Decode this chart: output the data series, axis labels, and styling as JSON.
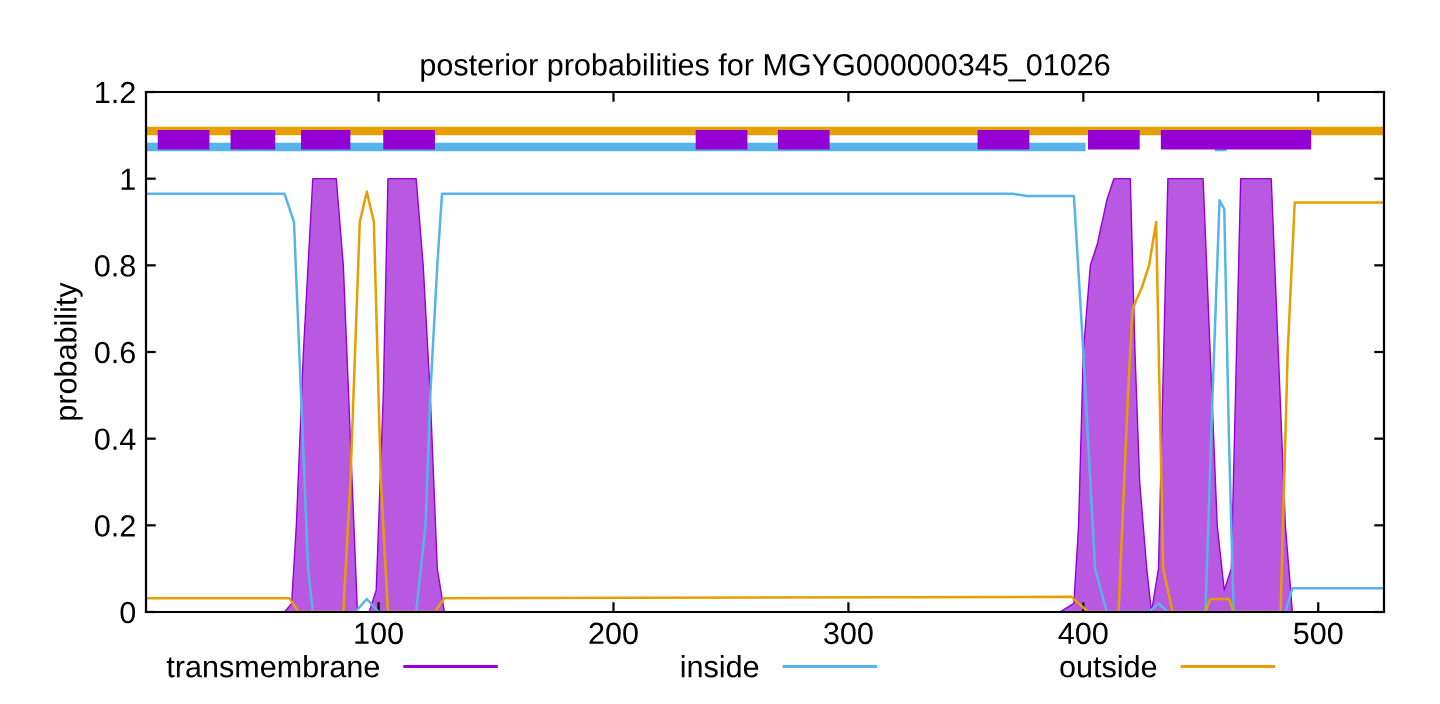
{
  "chart_data": {
    "type": "line",
    "title": "posterior probabilities for MGYG000000345_01026",
    "ylabel": "probability",
    "xlim": [
      1,
      528
    ],
    "ylim": [
      0,
      1.2
    ],
    "xticks": [
      100,
      200,
      300,
      400,
      500
    ],
    "yticks": [
      0,
      0.2,
      0.4,
      0.6,
      0.8,
      1,
      1.2
    ],
    "grid": false,
    "legend": "bottom",
    "series": [
      {
        "name": "transmembrane",
        "type": "area",
        "color": "#9400d3",
        "x": [
          1,
          60,
          63,
          65,
          68,
          72,
          82,
          85,
          88,
          91,
          96,
          99,
          102,
          104,
          116,
          119,
          122,
          125,
          128,
          390,
          396,
          398,
          400,
          403,
          406,
          410,
          413,
          420,
          422,
          424,
          427,
          429,
          432,
          436,
          451,
          454,
          457,
          460,
          463,
          467,
          480,
          483,
          486,
          489,
          528
        ],
        "values": [
          0,
          0,
          0.02,
          0.2,
          0.6,
          1,
          1,
          0.8,
          0.4,
          0,
          0,
          0.05,
          0.5,
          1,
          1,
          0.8,
          0.5,
          0.1,
          0,
          0,
          0.02,
          0.2,
          0.6,
          0.8,
          0.85,
          0.95,
          1,
          1,
          0.6,
          0.3,
          0.1,
          0,
          0.1,
          1,
          1,
          0.6,
          0.2,
          0.05,
          0.1,
          1,
          1,
          0.6,
          0.2,
          0,
          0
        ]
      },
      {
        "name": "inside",
        "color": "#56b4e9",
        "x": [
          1,
          60,
          64,
          67,
          70,
          72,
          90,
          95,
          100,
          104,
          116,
          120,
          122,
          125,
          127,
          370,
          376,
          396,
          400,
          405,
          410,
          428,
          432,
          436,
          452,
          455,
          458,
          460,
          462,
          464,
          486,
          489,
          528
        ],
        "values": [
          0.965,
          0.965,
          0.9,
          0.5,
          0.1,
          0,
          0,
          0.03,
          0,
          0,
          0,
          0.2,
          0.5,
          0.8,
          0.965,
          0.965,
          0.96,
          0.96,
          0.6,
          0.1,
          0,
          0,
          0.02,
          0,
          0,
          0.5,
          0.95,
          0.93,
          0.4,
          0,
          0,
          0.055,
          0.055
        ]
      },
      {
        "name": "outside",
        "color": "#e69f00",
        "x": [
          1,
          62,
          66,
          85,
          88,
          92,
          95,
          98,
          101,
          104,
          124,
          128,
          395,
          398,
          402,
          415,
          419,
          421,
          425,
          428,
          431,
          434,
          438,
          452,
          454,
          462,
          464,
          484,
          487,
          490,
          528
        ],
        "values": [
          0.032,
          0.032,
          0,
          0,
          0.3,
          0.9,
          0.97,
          0.9,
          0.3,
          0,
          0,
          0.032,
          0.035,
          0.02,
          0,
          0,
          0.5,
          0.7,
          0.75,
          0.8,
          0.9,
          0.1,
          0,
          0,
          0.03,
          0.03,
          0,
          0,
          0.6,
          0.945,
          0.945
        ]
      },
      {
        "color": "#e69f00",
        "x": [
          1,
          528
        ],
        "values": [
          1.11,
          1.11
        ]
      },
      {
        "color": "#56b4e9",
        "x": [
          1,
          401,
          430,
          456,
          461
        ],
        "values": [
          1.073,
          1.073,
          null,
          1.073,
          1.073
        ]
      },
      {
        "color": "#9400d3",
        "x": [
          6,
          28,
          32,
          37,
          56,
          60,
          67,
          88,
          95,
          102,
          124,
          180,
          235,
          257,
          262,
          270,
          292,
          320,
          355,
          377,
          390,
          402,
          424,
          430,
          433,
          456,
          462,
          485,
          497
        ],
        "values": [
          1.09,
          1.09,
          null,
          1.09,
          1.09,
          null,
          1.09,
          1.09,
          null,
          1.09,
          1.09,
          null,
          1.09,
          1.09,
          null,
          1.09,
          1.09,
          null,
          1.09,
          1.09,
          null,
          1.09,
          1.09,
          null,
          1.09,
          1.09,
          1.09,
          1.09,
          1.09
        ]
      }
    ]
  }
}
